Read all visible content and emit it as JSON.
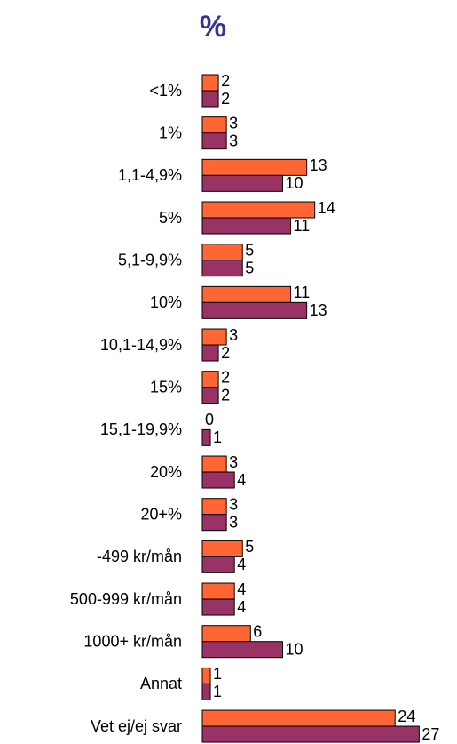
{
  "chart_data": {
    "type": "bar",
    "orientation": "horizontal",
    "title": "%",
    "categories": [
      "<1%",
      "1%",
      "1,1-4,9%",
      "5%",
      "5,1-9,9%",
      "10%",
      "10,1-14,9%",
      "15%",
      "15,1-19,9%",
      "20%",
      "20+%",
      "-499 kr/mån",
      "500-999 kr/mån",
      "1000+ kr/mån",
      "Annat",
      "Vet ej/ej svar"
    ],
    "series": [
      {
        "color": "#ff6633",
        "values": [
          2,
          3,
          13,
          14,
          5,
          11,
          3,
          2,
          0,
          3,
          3,
          5,
          4,
          6,
          1,
          24
        ]
      },
      {
        "color": "#993366",
        "values": [
          2,
          3,
          10,
          11,
          5,
          13,
          2,
          2,
          1,
          4,
          3,
          4,
          4,
          10,
          1,
          27
        ]
      }
    ]
  }
}
